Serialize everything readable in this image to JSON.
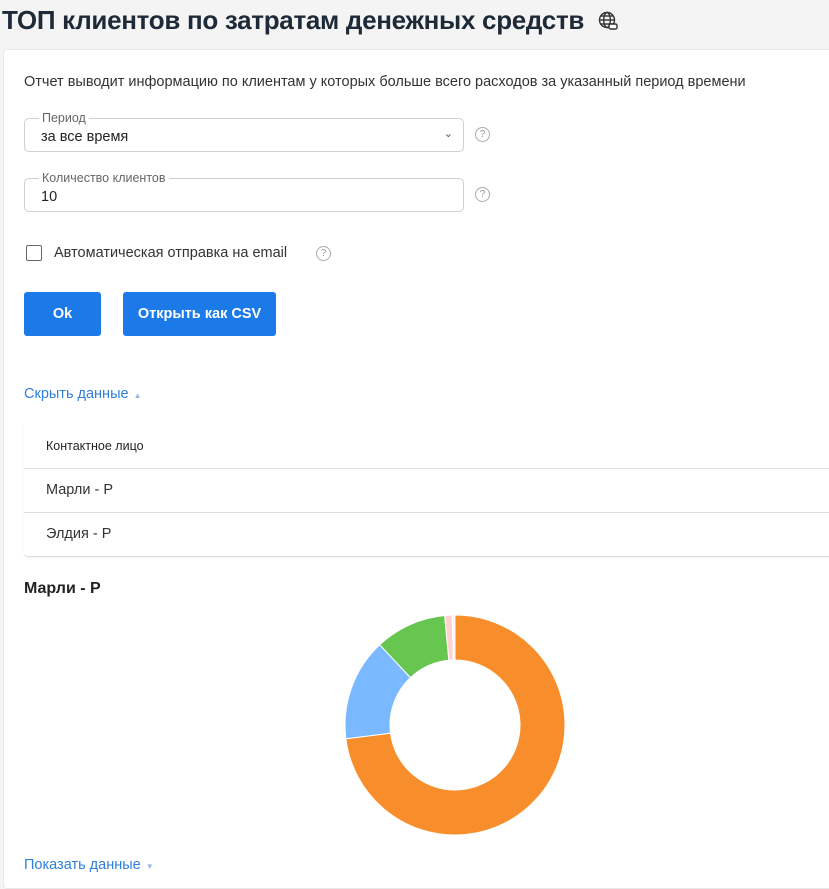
{
  "header": {
    "title": "ТОП клиентов по затратам денежных средств",
    "icon": "globe-icon"
  },
  "description": "Отчет выводит информацию по клиентам у которых больше всего расходов за указанный период времени",
  "form": {
    "period": {
      "label": "Период",
      "value": "за все время"
    },
    "count": {
      "label": "Количество клиентов",
      "value": "10"
    },
    "auto_email": {
      "label": "Автоматическая отправка на email",
      "checked": false
    },
    "help": "?"
  },
  "buttons": {
    "ok": "Ok",
    "csv": "Открыть как CSV"
  },
  "hide_data": "Скрыть данные",
  "show_data": "Показать данные",
  "table": {
    "header": "Контактное лицо",
    "rows": [
      "Марли - Р",
      "Элдия - Р"
    ]
  },
  "chart_title": "Марли - Р",
  "chart_data": {
    "type": "pie",
    "subtype": "donut",
    "title": "Марли - Р",
    "values": [
      73,
      15,
      10.5,
      1.1,
      0.4
    ],
    "colors": [
      "#f78e2b",
      "#7ab8ff",
      "#66c64f",
      "#ffd1d1",
      "#fff2f2"
    ]
  }
}
